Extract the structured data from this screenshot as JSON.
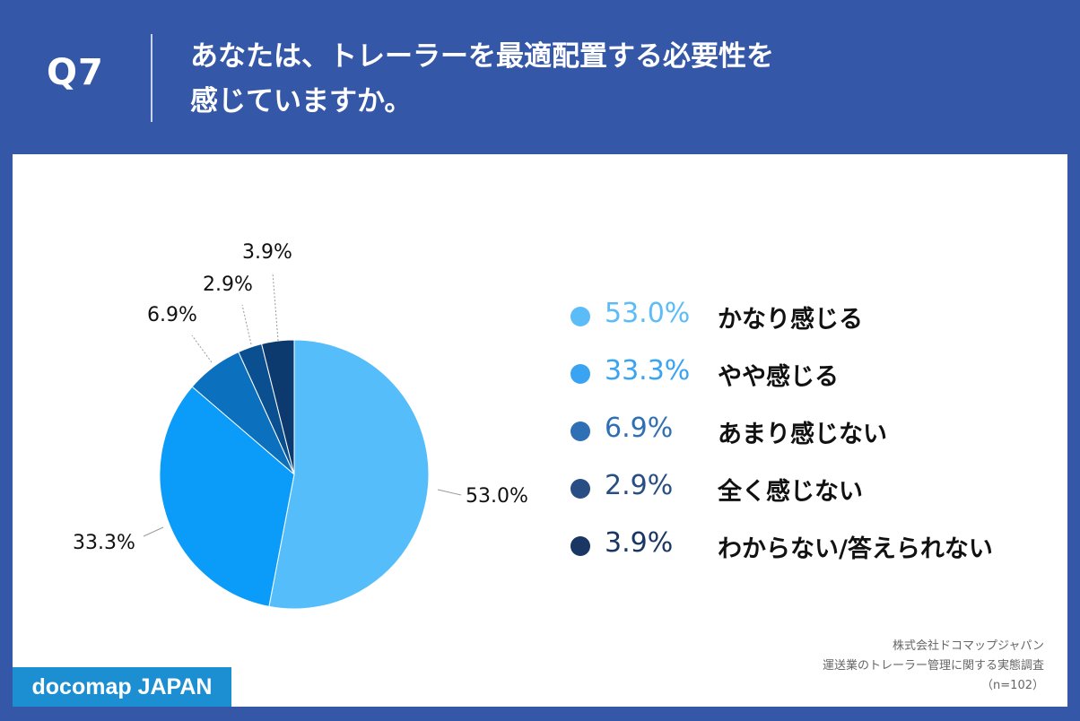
{
  "header": {
    "question_number": "Q7",
    "title_line1": "あなたは、トレーラーを最適配置する必要性を",
    "title_line2": "感じていますか。"
  },
  "chart_data": {
    "type": "pie",
    "slices": [
      {
        "label": "かなり感じる",
        "value": 53.0,
        "display": "53.0%",
        "color": "#56bdfb",
        "legend_color": "#5bbcf8"
      },
      {
        "label": "やや感じる",
        "value": 33.3,
        "display": "33.3%",
        "color": "#0a9cf8",
        "legend_color": "#3aa3f2"
      },
      {
        "label": "あまり感じない",
        "value": 6.9,
        "display": "6.9%",
        "color": "#0b70be",
        "legend_color": "#2f6fb4"
      },
      {
        "label": "全く感じない",
        "value": 2.9,
        "display": "2.9%",
        "color": "#0a4f8f",
        "legend_color": "#284e84"
      },
      {
        "label": "わからない/答えられない",
        "value": 3.9,
        "display": "3.9%",
        "color": "#0c3a6e",
        "legend_color": "#1a3763"
      }
    ],
    "start_angle_deg": 0,
    "direction": "clockwise"
  },
  "credit": {
    "company": "株式会社ドコマップジャパン",
    "survey": "運送業のトレーラー管理に関する実態調査",
    "sample": "（n=102）"
  },
  "brand": "docomap JAPAN"
}
